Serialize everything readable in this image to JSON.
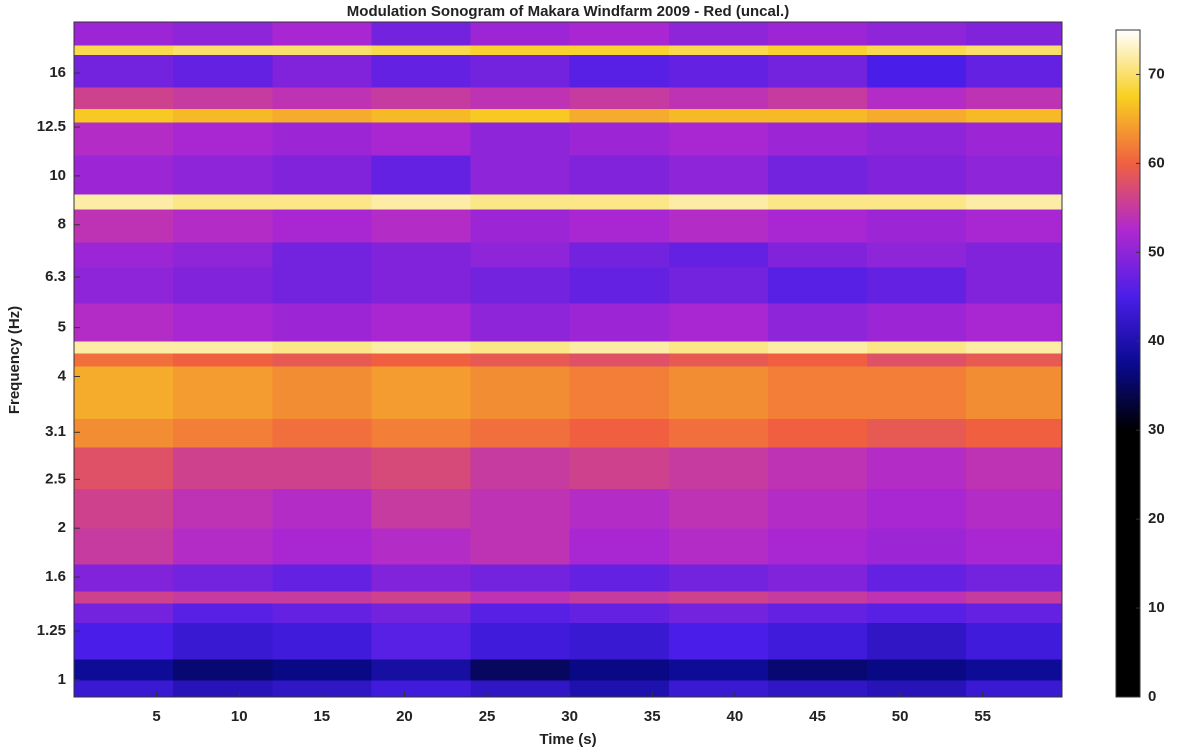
{
  "chart_data": {
    "type": "heatmap",
    "title": "Modulation Sonogram of Makara Windfarm 2009 - Red (uncal.)",
    "x_label": "Time (s)",
    "y_label": "Frequency (Hz)",
    "xbins": [
      0,
      6,
      12,
      18,
      24,
      30,
      36,
      42,
      48,
      54,
      59.8
    ],
    "ybins": [
      0.925,
      1.0,
      1.1,
      1.3,
      1.42,
      1.5,
      1.7,
      2.0,
      2.4,
      2.9,
      3.3,
      4.2,
      4.45,
      4.7,
      5.6,
      6.6,
      7.4,
      8.6,
      9.2,
      11.0,
      12.8,
      13.6,
      15.0,
      17.4,
      18.2,
      20.2
    ],
    "z": [
      [
        43,
        41,
        42,
        44,
        42,
        40,
        43,
        42,
        41,
        43
      ],
      [
        38,
        36,
        37,
        39,
        35,
        37,
        38,
        36,
        37,
        38
      ],
      [
        45,
        43,
        44,
        46,
        44,
        43,
        45,
        44,
        42,
        44
      ],
      [
        48,
        46,
        47,
        48,
        46,
        47,
        48,
        47,
        46,
        47
      ],
      [
        56,
        55,
        55,
        56,
        54,
        55,
        56,
        55,
        54,
        55
      ],
      [
        49,
        48,
        47,
        49,
        48,
        47,
        48,
        49,
        47,
        48
      ],
      [
        55,
        53,
        52,
        53,
        54,
        52,
        53,
        52,
        51,
        52
      ],
      [
        56,
        54,
        53,
        55,
        54,
        53,
        54,
        53,
        52,
        53
      ],
      [
        58,
        56,
        56,
        57,
        55,
        56,
        55,
        54,
        53,
        54
      ],
      [
        63,
        62,
        61,
        62,
        61,
        60,
        61,
        60,
        59,
        60
      ],
      [
        65,
        64,
        63,
        64,
        63,
        62,
        63,
        62,
        62,
        63
      ],
      [
        61,
        60,
        59,
        60,
        59,
        58,
        59,
        60,
        58,
        59
      ],
      [
        72,
        72,
        71,
        72,
        71,
        72,
        71,
        72,
        71,
        72
      ],
      [
        53,
        52,
        51,
        52,
        50,
        51,
        52,
        50,
        51,
        52
      ],
      [
        50,
        49,
        48,
        49,
        48,
        47,
        48,
        46,
        47,
        49
      ],
      [
        51,
        50,
        48,
        49,
        50,
        48,
        47,
        49,
        50,
        49
      ],
      [
        54,
        53,
        52,
        53,
        51,
        52,
        53,
        52,
        51,
        52
      ],
      [
        72,
        71,
        71,
        72,
        71,
        71,
        72,
        71,
        71,
        72
      ],
      [
        51,
        50,
        49,
        47,
        50,
        49,
        50,
        48,
        49,
        50
      ],
      [
        53,
        52,
        51,
        52,
        50,
        51,
        52,
        51,
        50,
        51
      ],
      [
        67,
        66,
        65,
        66,
        67,
        65,
        66,
        66,
        65,
        66
      ],
      [
        56,
        55,
        54,
        55,
        54,
        55,
        54,
        55,
        53,
        54
      ],
      [
        48,
        47,
        49,
        47,
        48,
        46,
        47,
        48,
        45,
        47
      ],
      [
        69,
        70,
        70,
        69,
        68,
        68,
        69,
        68,
        69,
        70
      ],
      [
        51,
        50,
        52,
        48,
        51,
        52,
        50,
        51,
        50,
        49
      ]
    ],
    "xlim": [
      0,
      59.8
    ],
    "xticks": [
      5,
      10,
      15,
      20,
      25,
      30,
      35,
      40,
      45,
      50,
      55
    ],
    "ylim": [
      0.925,
      20.2
    ],
    "yscale": "log",
    "yticks": [
      1,
      1.25,
      1.6,
      2,
      2.5,
      3.1,
      4,
      5,
      6.3,
      8,
      10,
      12.5,
      16
    ],
    "clim": [
      0,
      75
    ],
    "cticks": [
      0,
      10,
      20,
      30,
      40,
      50,
      60,
      70
    ],
    "colormap": [
      "#000000",
      "#000000",
      "#000000",
      "#000000",
      "#000000",
      "#0a0a90",
      "#4a1ee8",
      "#b028d0",
      "#f06040",
      "#f8d020",
      "#ffffff"
    ]
  }
}
